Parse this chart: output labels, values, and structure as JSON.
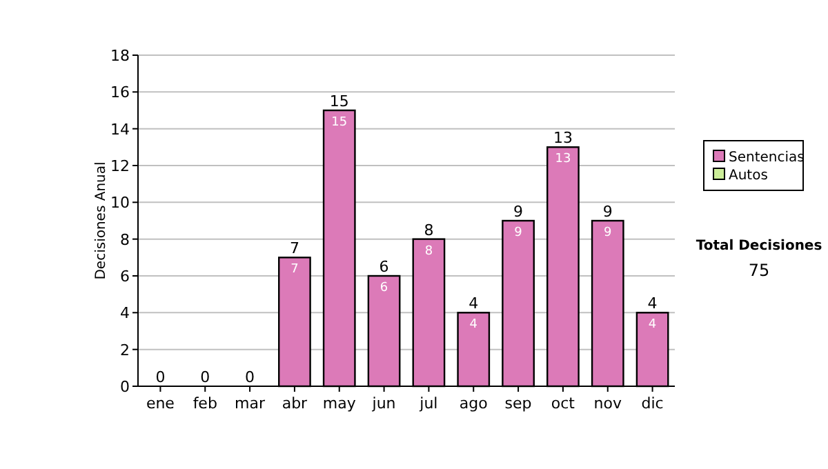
{
  "chart_data": {
    "type": "bar",
    "ylabel": "Decisiones Anual",
    "categories": [
      "ene",
      "feb",
      "mar",
      "abr",
      "may",
      "jun",
      "jul",
      "ago",
      "sep",
      "oct",
      "nov",
      "dic"
    ],
    "series": [
      {
        "name": "Sentencias",
        "color": "#dc7ab8",
        "values": [
          0,
          0,
          0,
          7,
          15,
          6,
          8,
          4,
          9,
          13,
          9,
          4
        ],
        "value_labels": [
          null,
          null,
          null,
          "7",
          "15",
          "6",
          "8",
          "4",
          "9",
          "13",
          "9",
          "4"
        ]
      },
      {
        "name": "Autos",
        "color": "#ccee99",
        "values": [
          0,
          0,
          0,
          0,
          0,
          0,
          0,
          0,
          0,
          0,
          0,
          0
        ]
      }
    ],
    "stacked": true,
    "totals": [
      "0",
      "0",
      "0",
      "7",
      "15",
      "6",
      "8",
      "4",
      "9",
      "13",
      "9",
      "4"
    ],
    "ylim": [
      0,
      18
    ],
    "yticks": [
      0,
      2,
      4,
      6,
      8,
      10,
      12,
      14,
      16,
      18
    ],
    "grid": "y",
    "legend": "right",
    "annotations": [
      "Total Decisiones",
      "75"
    ]
  }
}
